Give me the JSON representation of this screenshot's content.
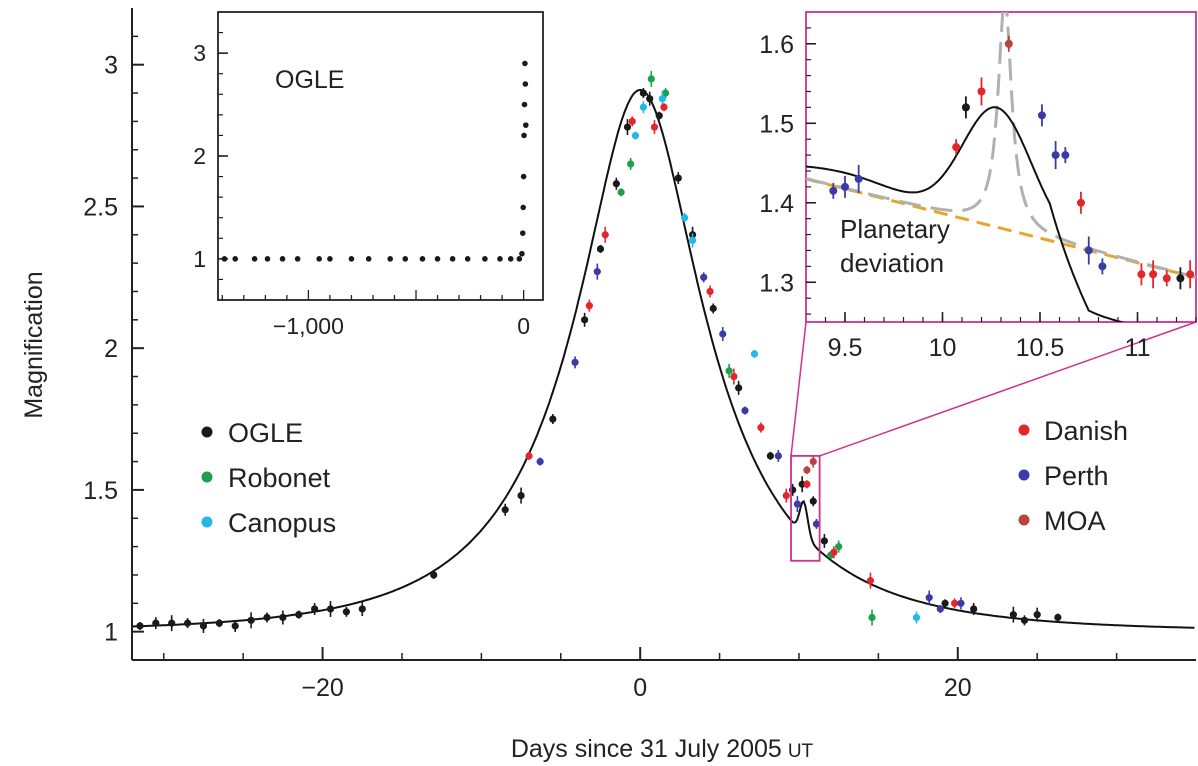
{
  "chart_data": [
    {
      "type": "scatter",
      "xlabel": "Days since 31 July 2005",
      "xlabel_suffix": "UT",
      "ylabel": "Magnification",
      "xlim": [
        -32,
        35
      ],
      "ylim": [
        0.9,
        3.2
      ],
      "xticks": [
        -20,
        0,
        20
      ],
      "xtick_labels": [
        "−20",
        "0",
        "20"
      ],
      "yticks": [
        1,
        1.5,
        2,
        2.5,
        3
      ],
      "ytick_labels": [
        "1",
        "1.5",
        "2",
        "2.5",
        "3"
      ],
      "grid": false,
      "legend": [
        {
          "name": "OGLE",
          "color": "#1a1a1a",
          "placement": "left"
        },
        {
          "name": "Robonet",
          "color": "#1ea04a",
          "placement": "left"
        },
        {
          "name": "Canopus",
          "color": "#22b8e8",
          "placement": "left"
        },
        {
          "name": "Danish",
          "color": "#e3262b",
          "placement": "right"
        },
        {
          "name": "Perth",
          "color": "#3b3aa6",
          "placement": "right"
        },
        {
          "name": "MOA",
          "color": "#b5453d",
          "placement": "right"
        }
      ],
      "model_curve": {
        "color": "#111111",
        "u0": 0.36,
        "tE": 11.0,
        "t0": 0.0
      },
      "zoom_box": {
        "x": [
          9.5,
          11.3
        ],
        "y": [
          1.25,
          1.62
        ],
        "color": "#d0308f"
      },
      "series": [
        {
          "name": "OGLE",
          "color": "#1a1a1a",
          "x": [
            -31.5,
            -30.5,
            -29.5,
            -28.5,
            -27.5,
            -26.5,
            -25.5,
            -24.5,
            -23.5,
            -22.5,
            -21.5,
            -20.5,
            -19.5,
            -18.5,
            -17.5,
            -13,
            -8.5,
            -7.5,
            -5.5,
            -3.5,
            -2.5,
            -1.5,
            -0.8,
            0.2,
            0.6,
            1.2,
            2.4,
            3.3,
            4.6,
            6.2,
            8.2,
            9.6,
            10.2,
            10.9,
            11.6,
            19.2,
            21,
            23.5,
            24.2,
            25,
            26.3
          ],
          "y": [
            1.02,
            1.03,
            1.03,
            1.03,
            1.02,
            1.03,
            1.02,
            1.04,
            1.05,
            1.05,
            1.06,
            1.08,
            1.08,
            1.07,
            1.08,
            1.2,
            1.43,
            1.48,
            1.75,
            2.1,
            2.35,
            2.58,
            2.78,
            2.9,
            2.88,
            2.82,
            2.6,
            2.4,
            2.14,
            1.86,
            1.62,
            1.5,
            1.52,
            1.46,
            1.32,
            1.1,
            1.08,
            1.06,
            1.04,
            1.06,
            1.05
          ]
        },
        {
          "name": "Robonet",
          "color": "#1ea04a",
          "x": [
            -1.2,
            -0.6,
            0.7,
            1.6,
            5.6,
            12,
            12.5,
            14.6
          ],
          "y": [
            2.55,
            2.65,
            2.95,
            2.9,
            1.92,
            1.27,
            1.3,
            1.05
          ]
        },
        {
          "name": "Canopus",
          "color": "#22b8e8",
          "x": [
            -0.3,
            0.2,
            1.4,
            2.8,
            3.3,
            7.2,
            17.4
          ],
          "y": [
            2.75,
            2.85,
            2.88,
            2.46,
            2.38,
            1.98,
            1.05
          ]
        },
        {
          "name": "Danish",
          "color": "#e3262b",
          "x": [
            -7,
            -3.2,
            -2.2,
            -0.5,
            0.9,
            1.5,
            4.4,
            5.9,
            7.6,
            9.2,
            10.5,
            12.2,
            14.5,
            19.8
          ],
          "y": [
            1.62,
            2.15,
            2.4,
            2.8,
            2.78,
            2.85,
            2.2,
            1.9,
            1.72,
            1.48,
            1.52,
            1.28,
            1.18,
            1.1
          ]
        },
        {
          "name": "Perth",
          "color": "#3b3aa6",
          "x": [
            -6.3,
            -4.1,
            -2.7,
            4,
            5.2,
            6.6,
            8.7,
            9.9,
            11.1,
            18.2,
            18.9,
            20.2
          ],
          "y": [
            1.6,
            1.95,
            2.27,
            2.25,
            2.05,
            1.78,
            1.62,
            1.45,
            1.38,
            1.12,
            1.08,
            1.1
          ]
        },
        {
          "name": "MOA",
          "color": "#b5453d",
          "x": [
            10.5,
            10.9
          ],
          "y": [
            1.57,
            1.6
          ]
        }
      ],
      "insets": [
        {
          "label": "OGLE",
          "xlim": [
            -1420,
            90
          ],
          "ylim": [
            0.6,
            3.4
          ],
          "xticks": [
            -1000,
            0
          ],
          "xtick_labels": [
            "−1,000",
            "0"
          ],
          "yticks": [
            1,
            2,
            3
          ],
          "ytick_labels": [
            "1",
            "2",
            "3"
          ],
          "x": [
            -1390,
            -1340,
            -1250,
            -1190,
            -1120,
            -1050,
            -950,
            -900,
            -800,
            -720,
            -620,
            -550,
            -470,
            -400,
            -330,
            -260,
            -180,
            -110,
            -60,
            -20,
            -8,
            -4,
            -2,
            0,
            2,
            4,
            6,
            8,
            10
          ],
          "y": [
            1,
            1,
            1,
            1,
            1,
            1,
            1,
            1,
            1,
            1,
            1,
            1,
            1,
            1,
            1,
            1,
            1,
            1,
            1,
            1,
            1.05,
            1.25,
            1.5,
            1.8,
            2.2,
            2.5,
            2.9,
            2.7,
            2.3
          ]
        },
        {
          "label": "Planetary deviation",
          "xlim": [
            9.3,
            11.3
          ],
          "ylim": [
            1.25,
            1.64
          ],
          "xticks": [
            9.5,
            10,
            10.5,
            11
          ],
          "xtick_labels": [
            "9.5",
            "10",
            "10.5",
            "11"
          ],
          "yticks": [
            1.3,
            1.4,
            1.5,
            1.6
          ],
          "ytick_labels": [
            "1.3",
            "1.4",
            "1.5",
            "1.6"
          ],
          "points": [
            {
              "x": 9.44,
              "y": 1.415,
              "color": "#3b3aa6"
            },
            {
              "x": 9.5,
              "y": 1.42,
              "color": "#3b3aa6"
            },
            {
              "x": 9.57,
              "y": 1.43,
              "color": "#3b3aa6"
            },
            {
              "x": 10.07,
              "y": 1.47,
              "color": "#e3262b"
            },
            {
              "x": 10.12,
              "y": 1.52,
              "color": "#1a1a1a"
            },
            {
              "x": 10.2,
              "y": 1.54,
              "color": "#e3262b"
            },
            {
              "x": 10.34,
              "y": 1.6,
              "color": "#b5453d"
            },
            {
              "x": 10.51,
              "y": 1.51,
              "color": "#3b3aa6"
            },
            {
              "x": 10.58,
              "y": 1.46,
              "color": "#3b3aa6"
            },
            {
              "x": 10.63,
              "y": 1.46,
              "color": "#3b3aa6"
            },
            {
              "x": 10.71,
              "y": 1.4,
              "color": "#e3262b"
            },
            {
              "x": 10.75,
              "y": 1.34,
              "color": "#3b3aa6"
            },
            {
              "x": 10.82,
              "y": 1.32,
              "color": "#3b3aa6"
            },
            {
              "x": 11.02,
              "y": 1.31,
              "color": "#e3262b"
            },
            {
              "x": 11.08,
              "y": 1.31,
              "color": "#e3262b"
            },
            {
              "x": 11.15,
              "y": 1.305,
              "color": "#e3262b"
            },
            {
              "x": 11.22,
              "y": 1.305,
              "color": "#1a1a1a"
            },
            {
              "x": 11.27,
              "y": 1.31,
              "color": "#e3262b"
            }
          ],
          "curves": {
            "fit_color": "#111111",
            "alt_color": "#b0b0b0",
            "baseline_color": "#e8a628"
          }
        }
      ]
    }
  ]
}
